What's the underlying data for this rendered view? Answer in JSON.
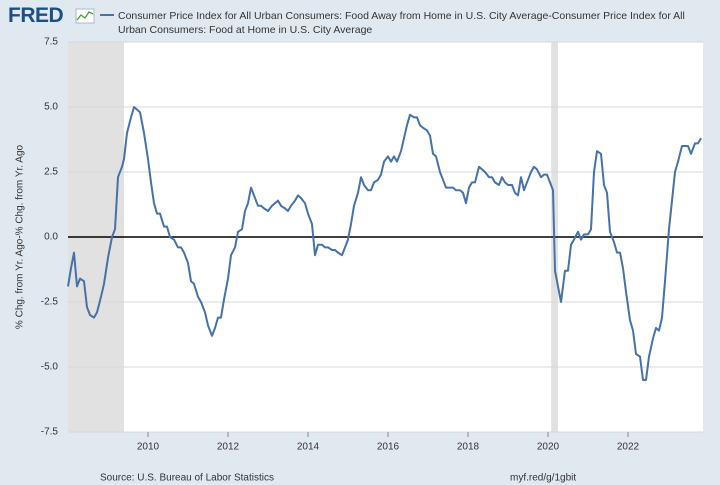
{
  "logo": "FRED",
  "chart_data": {
    "type": "line",
    "ylabel": "% Chg. from Yr. Ago-% Chg. from Yr. Ago",
    "source": "Source: U.S. Bureau of Labor Statistics",
    "url": "myf.red/g/1gbit",
    "xlim": [
      2008,
      2023.875
    ],
    "xticks": [
      2010,
      2012,
      2014,
      2016,
      2018,
      2020,
      2022
    ],
    "ylim": [
      -7.5,
      7.5
    ],
    "yticks": [
      -7.5,
      {
        "value": -5,
        "label": "-5.0"
      },
      -2.5,
      {
        "value": 0,
        "label": "0.0"
      },
      2.5,
      {
        "value": 5,
        "label": "5.0"
      },
      7.5
    ],
    "grid": true,
    "reference_line": 0,
    "recessions": [
      [
        2008,
        2009.4
      ],
      [
        2020.08,
        2020.25
      ]
    ],
    "x": [
      2008,
      2008.075,
      2008.15,
      2008.225,
      2008.3,
      2008.4,
      2008.475,
      2008.55,
      2008.65,
      2008.725,
      2008.825,
      2008.9,
      2009,
      2009.1,
      2009.175,
      2009.25,
      2009.35,
      2009.4,
      2009.475,
      2009.575,
      2009.65,
      2009.725,
      2009.8,
      2009.9,
      2010,
      2010.075,
      2010.15,
      2010.225,
      2010.3,
      2010.4,
      2010.475,
      2010.55,
      2010.65,
      2010.75,
      2010.825,
      2010.9,
      2011,
      2011.075,
      2011.15,
      2011.25,
      2011.325,
      2011.425,
      2011.5,
      2011.6,
      2011.675,
      2011.75,
      2011.825,
      2011.9,
      2012,
      2012.075,
      2012.175,
      2012.25,
      2012.35,
      2012.425,
      2012.5,
      2012.575,
      2012.65,
      2012.75,
      2012.825,
      2012.9,
      2013,
      2013.1,
      2013.175,
      2013.25,
      2013.325,
      2013.425,
      2013.5,
      2013.575,
      2013.675,
      2013.75,
      2013.825,
      2013.925,
      2014,
      2014.1,
      2014.175,
      2014.25,
      2014.35,
      2014.425,
      2014.5,
      2014.6,
      2014.675,
      2014.75,
      2014.85,
      2014.925,
      2015,
      2015.075,
      2015.15,
      2015.25,
      2015.325,
      2015.4,
      2015.5,
      2015.575,
      2015.65,
      2015.75,
      2015.825,
      2015.9,
      2016,
      2016.075,
      2016.15,
      2016.225,
      2016.325,
      2016.4,
      2016.475,
      2016.55,
      2016.65,
      2016.725,
      2016.8,
      2016.875,
      2016.975,
      2017.05,
      2017.125,
      2017.2,
      2017.3,
      2017.375,
      2017.45,
      2017.55,
      2017.625,
      2017.7,
      2017.8,
      2017.875,
      2017.95,
      2018.025,
      2018.1,
      2018.175,
      2018.275,
      2018.35,
      2018.425,
      2018.525,
      2018.6,
      2018.675,
      2018.775,
      2018.85,
      2018.925,
      2019,
      2019.1,
      2019.175,
      2019.25,
      2019.325,
      2019.4,
      2019.5,
      2019.575,
      2019.65,
      2019.725,
      2019.825,
      2019.9,
      2019.975,
      2020.05,
      2020.125,
      2020.175,
      2020.25,
      2020.325,
      2020.425,
      2020.5,
      2020.575,
      2020.65,
      2020.75,
      2020.825,
      2020.9,
      2021,
      2021.075,
      2021.15,
      2021.225,
      2021.325,
      2021.4,
      2021.475,
      2021.55,
      2021.65,
      2021.725,
      2021.8,
      2021.875,
      2021.95,
      2022.05,
      2022.125,
      2022.2,
      2022.3,
      2022.375,
      2022.45,
      2022.525,
      2022.625,
      2022.7,
      2022.775,
      2022.85,
      2022.925,
      2023.025,
      2023.1,
      2023.175,
      2023.25,
      2023.35,
      2023.425,
      2023.5,
      2023.575,
      2023.675,
      2023.75,
      2023.825
    ],
    "series": [
      {
        "name": "Consumer Price Index for All Urban Consumers: Food Away from Home in U.S. City Average-Consumer Price Index for All Urban Consumers: Food at Home in U.S. City Average",
        "color": "#4572a7",
        "values": [
          -1.9,
          -1.2,
          -0.6,
          -1.9,
          -1.6,
          -1.7,
          -2.7,
          -3.0,
          -3.1,
          -2.9,
          -2.3,
          -1.8,
          -0.8,
          0.0,
          0.3,
          2.3,
          2.7,
          3.0,
          4.0,
          4.6,
          5.0,
          4.9,
          4.8,
          4.0,
          3.0,
          2.1,
          1.3,
          0.9,
          0.9,
          0.4,
          0.4,
          0.0,
          -0.1,
          -0.4,
          -0.4,
          -0.6,
          -1.0,
          -1.7,
          -1.8,
          -2.3,
          -2.5,
          -2.9,
          -3.4,
          -3.8,
          -3.5,
          -3.1,
          -3.1,
          -2.4,
          -1.6,
          -0.7,
          -0.4,
          0.2,
          0.3,
          1.0,
          1.3,
          1.9,
          1.6,
          1.2,
          1.2,
          1.1,
          1.0,
          1.2,
          1.3,
          1.4,
          1.2,
          1.1,
          1.0,
          1.2,
          1.4,
          1.6,
          1.5,
          1.3,
          0.9,
          0.5,
          -0.7,
          -0.3,
          -0.3,
          -0.4,
          -0.4,
          -0.5,
          -0.5,
          -0.6,
          -0.7,
          -0.4,
          -0.1,
          0.5,
          1.2,
          1.7,
          2.3,
          2.0,
          1.8,
          1.8,
          2.1,
          2.2,
          2.4,
          2.9,
          3.1,
          2.9,
          3.1,
          2.9,
          3.3,
          3.8,
          4.3,
          4.7,
          4.6,
          4.6,
          4.3,
          4.2,
          4.1,
          3.9,
          3.2,
          3.1,
          2.5,
          2.2,
          1.9,
          1.9,
          1.9,
          1.8,
          1.8,
          1.7,
          1.3,
          1.9,
          2.1,
          2.1,
          2.7,
          2.6,
          2.5,
          2.3,
          2.3,
          2.1,
          2.0,
          2.3,
          2.1,
          2.0,
          2.0,
          1.7,
          1.6,
          2.3,
          1.8,
          2.2,
          2.5,
          2.7,
          2.6,
          2.3,
          2.4,
          2.4,
          2.1,
          1.8,
          -1.3,
          -1.9,
          -2.5,
          -1.3,
          -1.3,
          -0.3,
          -0.1,
          0.2,
          -0.1,
          0.1,
          0.1,
          0.3,
          2.5,
          3.3,
          3.2,
          2.0,
          1.7,
          0.2,
          -0.2,
          -0.6,
          -0.6,
          -1.2,
          -2.1,
          -3.2,
          -3.6,
          -4.5,
          -4.6,
          -5.5,
          -5.5,
          -4.6,
          -3.9,
          -3.5,
          -3.6,
          -3.1,
          -1.7,
          0.3,
          1.4,
          2.5,
          2.9,
          3.5,
          3.5,
          3.5,
          3.2,
          3.6,
          3.6,
          3.8
        ]
      }
    ]
  }
}
